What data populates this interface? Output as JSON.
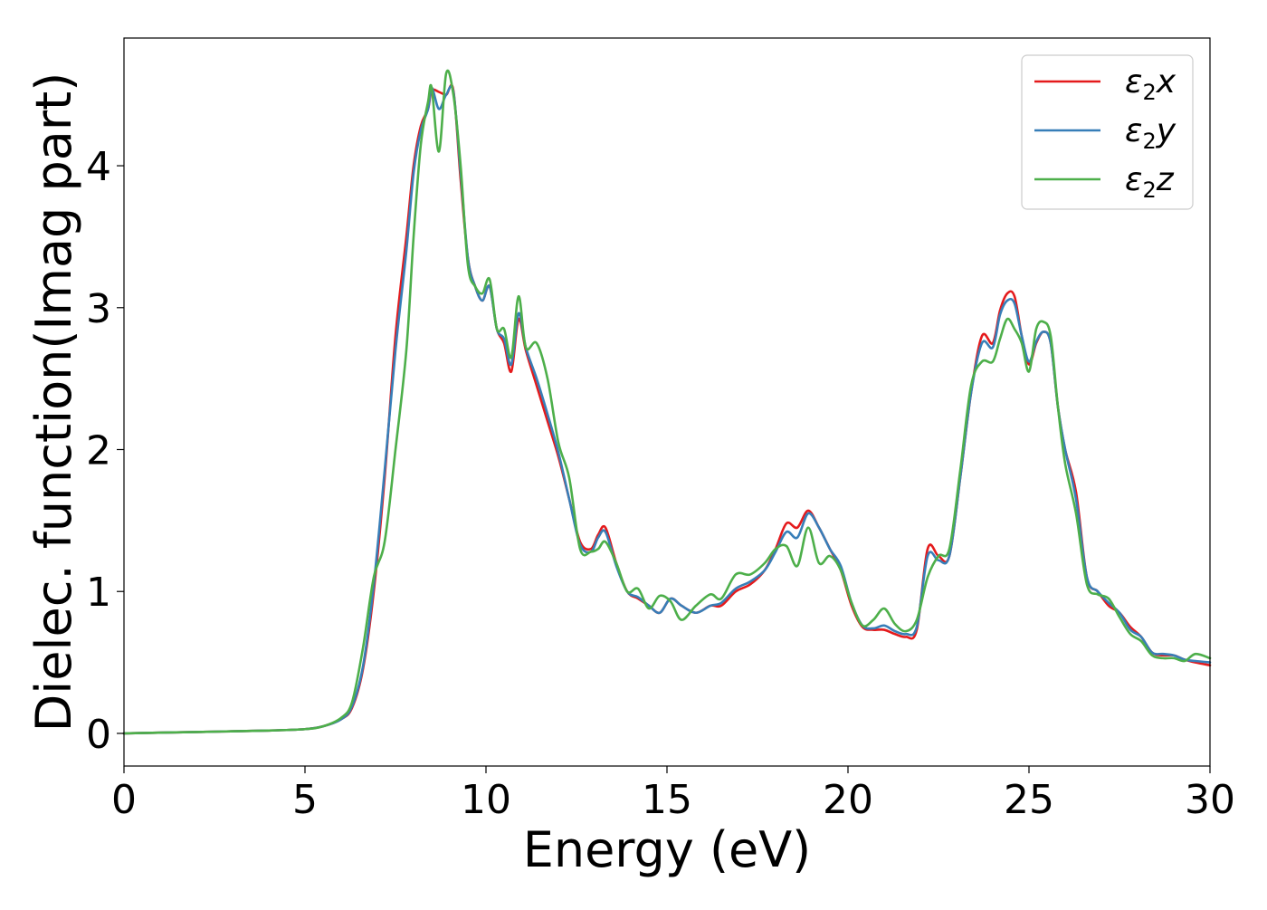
{
  "chart_data": {
    "type": "line",
    "title": "",
    "xlabel": "Energy (eV)",
    "ylabel": "Dielec. function(Imag part)",
    "xlim": [
      0,
      30
    ],
    "ylim": [
      -0.23,
      4.9
    ],
    "xticks": [
      0,
      5,
      10,
      15,
      20,
      25,
      30
    ],
    "yticks": [
      0,
      1,
      2,
      3,
      4
    ],
    "grid": false,
    "legend_position": "top-right",
    "series": [
      {
        "name": "ε₂x",
        "legend_base": "ε",
        "legend_sub": "2",
        "legend_tail": "x",
        "color": "#e41a1c",
        "x": [
          0,
          2,
          4,
          5,
          5.5,
          6,
          6.3,
          6.6,
          6.9,
          7.2,
          7.5,
          7.8,
          8.0,
          8.2,
          8.4,
          8.5,
          8.7,
          8.9,
          9.1,
          9.3,
          9.5,
          9.7,
          9.9,
          10.1,
          10.3,
          10.5,
          10.7,
          10.9,
          11.1,
          11.4,
          11.7,
          12.0,
          12.3,
          12.6,
          12.9,
          13.1,
          13.3,
          13.6,
          13.9,
          14.2,
          14.5,
          14.8,
          15.1,
          15.4,
          15.8,
          16.2,
          16.5,
          16.9,
          17.3,
          17.7,
          18.0,
          18.3,
          18.6,
          18.9,
          19.2,
          19.5,
          19.8,
          20.1,
          20.4,
          20.7,
          21.0,
          21.3,
          21.6,
          21.9,
          22.2,
          22.5,
          22.8,
          23.1,
          23.4,
          23.7,
          24.0,
          24.2,
          24.4,
          24.6,
          24.8,
          25.0,
          25.2,
          25.4,
          25.6,
          25.8,
          26.0,
          26.3,
          26.6,
          26.9,
          27.2,
          27.5,
          27.8,
          28.1,
          28.4,
          28.7,
          29.0,
          29.3,
          29.6,
          30.0
        ],
        "y": [
          0,
          0.01,
          0.02,
          0.03,
          0.05,
          0.1,
          0.18,
          0.45,
          1.0,
          1.8,
          2.8,
          3.5,
          4.0,
          4.28,
          4.4,
          4.53,
          4.52,
          4.5,
          4.53,
          3.9,
          3.35,
          3.15,
          3.05,
          3.15,
          2.85,
          2.75,
          2.55,
          2.92,
          2.7,
          2.45,
          2.2,
          1.95,
          1.65,
          1.35,
          1.3,
          1.4,
          1.45,
          1.2,
          1.0,
          0.95,
          0.9,
          0.85,
          0.95,
          0.9,
          0.85,
          0.9,
          0.9,
          1.0,
          1.05,
          1.15,
          1.3,
          1.48,
          1.45,
          1.57,
          1.45,
          1.3,
          1.15,
          0.9,
          0.75,
          0.73,
          0.73,
          0.7,
          0.68,
          0.73,
          1.3,
          1.25,
          1.25,
          1.8,
          2.4,
          2.8,
          2.75,
          2.98,
          3.1,
          3.08,
          2.8,
          2.6,
          2.75,
          2.83,
          2.75,
          2.3,
          2.0,
          1.7,
          1.1,
          1.0,
          0.9,
          0.85,
          0.75,
          0.68,
          0.57,
          0.55,
          0.55,
          0.52,
          0.5,
          0.48
        ]
      },
      {
        "name": "ε₂y",
        "legend_base": "ε",
        "legend_sub": "2",
        "legend_tail": "y",
        "color": "#377eb8",
        "x": [
          0,
          2,
          4,
          5,
          5.5,
          6,
          6.3,
          6.6,
          6.9,
          7.2,
          7.5,
          7.8,
          8.0,
          8.2,
          8.4,
          8.5,
          8.7,
          8.9,
          9.1,
          9.3,
          9.5,
          9.7,
          9.9,
          10.1,
          10.3,
          10.5,
          10.7,
          10.9,
          11.1,
          11.4,
          11.7,
          12.0,
          12.3,
          12.6,
          12.9,
          13.1,
          13.3,
          13.6,
          13.9,
          14.2,
          14.5,
          14.8,
          15.1,
          15.4,
          15.8,
          16.2,
          16.5,
          16.9,
          17.3,
          17.7,
          18.0,
          18.3,
          18.6,
          18.9,
          19.2,
          19.5,
          19.8,
          20.1,
          20.4,
          20.7,
          21.0,
          21.3,
          21.6,
          21.9,
          22.2,
          22.5,
          22.8,
          23.1,
          23.4,
          23.7,
          24.0,
          24.2,
          24.4,
          24.6,
          24.8,
          25.0,
          25.2,
          25.4,
          25.6,
          25.8,
          26.0,
          26.3,
          26.6,
          26.9,
          27.2,
          27.5,
          27.8,
          28.1,
          28.4,
          28.7,
          29.0,
          29.3,
          29.6,
          30.0
        ],
        "y": [
          0,
          0.01,
          0.02,
          0.03,
          0.05,
          0.1,
          0.19,
          0.47,
          1.05,
          1.85,
          2.7,
          3.4,
          3.95,
          4.25,
          4.4,
          4.55,
          4.4,
          4.5,
          4.52,
          3.95,
          3.35,
          3.15,
          3.05,
          3.15,
          2.85,
          2.78,
          2.6,
          2.96,
          2.72,
          2.5,
          2.25,
          1.98,
          1.65,
          1.33,
          1.28,
          1.38,
          1.42,
          1.18,
          1.0,
          0.96,
          0.9,
          0.85,
          0.95,
          0.9,
          0.85,
          0.9,
          0.92,
          1.02,
          1.07,
          1.15,
          1.28,
          1.42,
          1.38,
          1.55,
          1.45,
          1.3,
          1.18,
          0.92,
          0.76,
          0.74,
          0.76,
          0.72,
          0.7,
          0.75,
          1.25,
          1.22,
          1.25,
          1.8,
          2.4,
          2.75,
          2.72,
          2.95,
          3.05,
          3.03,
          2.8,
          2.62,
          2.76,
          2.83,
          2.75,
          2.3,
          2.0,
          1.65,
          1.1,
          1.0,
          0.92,
          0.85,
          0.73,
          0.68,
          0.57,
          0.56,
          0.55,
          0.52,
          0.51,
          0.5
        ]
      },
      {
        "name": "ε₂z",
        "legend_base": "ε",
        "legend_sub": "2",
        "legend_tail": "z",
        "color": "#4daf4a",
        "x": [
          0,
          2,
          4,
          5,
          5.5,
          6,
          6.3,
          6.6,
          6.9,
          7.2,
          7.5,
          7.8,
          8.0,
          8.2,
          8.4,
          8.5,
          8.7,
          8.9,
          9.1,
          9.3,
          9.5,
          9.7,
          9.9,
          10.1,
          10.3,
          10.5,
          10.7,
          10.9,
          11.1,
          11.4,
          11.7,
          12.0,
          12.3,
          12.6,
          12.9,
          13.1,
          13.3,
          13.6,
          13.9,
          14.2,
          14.5,
          14.8,
          15.1,
          15.4,
          15.8,
          16.2,
          16.5,
          16.9,
          17.3,
          17.7,
          18.0,
          18.3,
          18.6,
          18.9,
          19.2,
          19.5,
          19.8,
          20.1,
          20.4,
          20.7,
          21.0,
          21.3,
          21.6,
          21.9,
          22.2,
          22.5,
          22.8,
          23.1,
          23.4,
          23.7,
          24.0,
          24.2,
          24.4,
          24.6,
          24.8,
          25.0,
          25.2,
          25.4,
          25.6,
          25.8,
          26.0,
          26.3,
          26.6,
          26.9,
          27.2,
          27.5,
          27.8,
          28.1,
          28.4,
          28.7,
          29.0,
          29.3,
          29.6,
          30.0
        ],
        "y": [
          0,
          0.01,
          0.02,
          0.03,
          0.05,
          0.11,
          0.22,
          0.6,
          1.1,
          1.35,
          2.0,
          2.7,
          3.5,
          4.15,
          4.45,
          4.55,
          4.1,
          4.65,
          4.5,
          4.0,
          3.3,
          3.15,
          3.1,
          3.2,
          2.85,
          2.85,
          2.65,
          3.08,
          2.72,
          2.75,
          2.5,
          2.05,
          1.8,
          1.3,
          1.28,
          1.3,
          1.35,
          1.2,
          1.0,
          1.02,
          0.88,
          0.97,
          0.93,
          0.8,
          0.9,
          0.98,
          0.95,
          1.12,
          1.12,
          1.2,
          1.3,
          1.32,
          1.18,
          1.45,
          1.2,
          1.25,
          1.15,
          0.92,
          0.76,
          0.8,
          0.88,
          0.77,
          0.72,
          0.8,
          1.1,
          1.25,
          1.3,
          1.85,
          2.45,
          2.62,
          2.62,
          2.78,
          2.92,
          2.85,
          2.75,
          2.55,
          2.85,
          2.9,
          2.8,
          2.3,
          1.9,
          1.55,
          1.05,
          0.98,
          0.95,
          0.82,
          0.7,
          0.65,
          0.55,
          0.53,
          0.53,
          0.51,
          0.56,
          0.53
        ]
      }
    ]
  }
}
